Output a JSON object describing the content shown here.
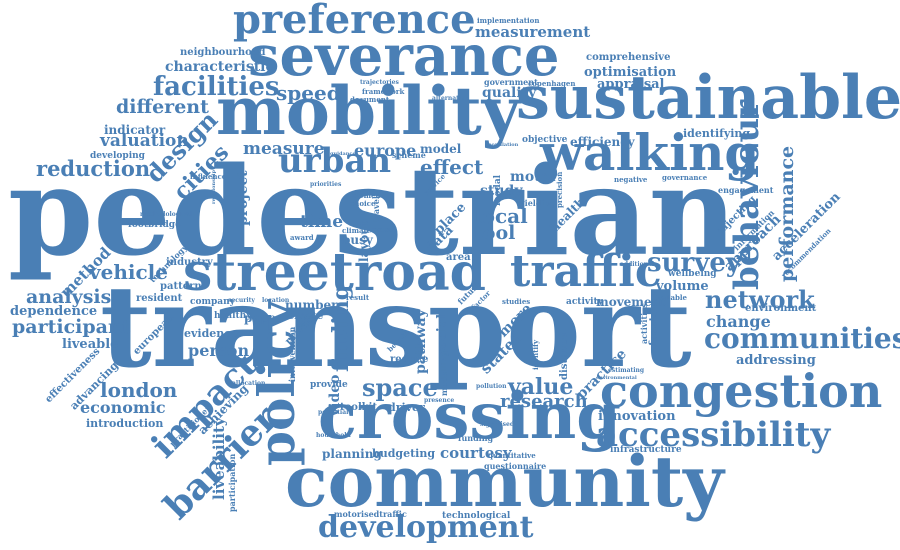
{
  "color": "#4a7fb5",
  "words": {
    "pedestrian": "pedestrian",
    "transport": "transport",
    "community": "community",
    "crossing": "crossing",
    "mobility": "mobility",
    "severance": "severance",
    "sustainable": "sustainable",
    "walking": "walking",
    "streetroad": "streetroad",
    "traffic": "traffic",
    "congestion": "congestion",
    "accessibility": "accessibility",
    "preference": "preference",
    "barrier": "barrier",
    "policy": "policy",
    "impact": "impact",
    "communities": "communities",
    "development": "development",
    "behaviour": "behaviour",
    "survey": "survey",
    "network": "network",
    "facilities": "facilities",
    "urban": "urban",
    "measure": "measure",
    "speed": "speed",
    "europe": "europe",
    "effect": "effect",
    "local": "local",
    "tool": "tool",
    "space": "space",
    "value": "value",
    "research": "research",
    "london": "london",
    "economic": "economic",
    "analysis": "analysis",
    "participant": "participant",
    "vehicle": "vehicle",
    "method": "method",
    "reduction": "reduction",
    "valuation": "valuation",
    "different": "different",
    "design": "design",
    "cities": "cities",
    "characteristic": "characteristic",
    "measurement": "measurement",
    "optimisation": "optimisation",
    "appraisal": "appraisal",
    "quality": "quality",
    "approach": "approach",
    "performance": "performance",
    "change": "change",
    "addressing": "addressing",
    "innovation": "innovation",
    "planning": "planning",
    "courtesy": "courtesy",
    "liveability": "liveability",
    "person": "person",
    "dependence": "dependence",
    "liveable": "liveable",
    "introduction": "introduction",
    "finding": "finding",
    "project": "project",
    "time": "time",
    "motor": "motor",
    "study": "study",
    "model": "model",
    "identifying": "identifying",
    "efficiency": "efficiency",
    "indicator": "indicator",
    "developing": "developing",
    "neighbourhood": "neighbourhood",
    "implementation": "implementation",
    "comprehensive": "comprehensive",
    "volume": "volume",
    "environment": "environment",
    "wellbeing": "wellbeing",
    "acceleration": "acceleration",
    "injecting": "injecting",
    "resident": "resident",
    "pattern": "pattern",
    "industry": "industry",
    "technology": "technology",
    "company": "company",
    "paper": "paper",
    "evidence": "evidence",
    "european": "european",
    "advancing": "advancing",
    "effectiveness": "effectiveness",
    "achieving": "achieving",
    "busy": "busy",
    "reduce": "reduce",
    "provide": "provide",
    "video": "video",
    "toolkit": "toolkit",
    "driver": "driver",
    "budgeting": "budgeting",
    "movement": "movement",
    "activity": "activity",
    "practice": "practice",
    "freetown": "freetown",
    "technological": "technological",
    "motorisedtraffic": "motorisedtraffic",
    "infrastructure": "infrastructure",
    "questionnaire": "questionnaire",
    "quantitative": "quantitative",
    "funding": "funding",
    "pathway": "pathway",
    "stated": "stated",
    "social": "social",
    "more": "more",
    "place": "place",
    "data": "data",
    "layout": "layout",
    "area": "area",
    "health": "health",
    "number": "number",
    "create": "create",
    "healthy": "healthy",
    "footbridge": "footbridge",
    "influence": "influence",
    "scheme": "scheme",
    "objective": "objective",
    "government": "government",
    "copenhagen": "copenhagen",
    "framework": "framework",
    "document": "document",
    "trajectories": "trajectories",
    "alternative": "alternative",
    "negative": "negative",
    "governance": "governance",
    "engagement": "engagement",
    "information": "information",
    "recommendation": "recommendation",
    "additional": "additional",
    "available": "available",
    "activities": "activities",
    "estimating": "estimating",
    "signalised": "signalised",
    "household": "household",
    "potential": "potential",
    "participation": "participation",
    "practitioner": "practitioner",
    "allocation": "allocation",
    "security": "security",
    "location": "location",
    "intervention": "intervention",
    "private": "private",
    "award": "award",
    "climate": "climate",
    "cross": "cross",
    "result": "result",
    "studies": "studies",
    "pollution": "pollution",
    "presence": "presence",
    "modelling": "modelling",
    "benefit": "benefit",
    "yielding": "yielding",
    "precision": "precision",
    "identify": "identify",
    "distance": "distance",
    "future": "future",
    "factor": "factor",
    "choice": "choice",
    "element": "element",
    "travel": "travel",
    "service": "service",
    "modal": "modal",
    "priorities": "priorities",
    "population": "population",
    "methodological": "methodological",
    "relationship": "relationship",
    "guidance": "guidance",
    "environmental": "environmental"
  }
}
